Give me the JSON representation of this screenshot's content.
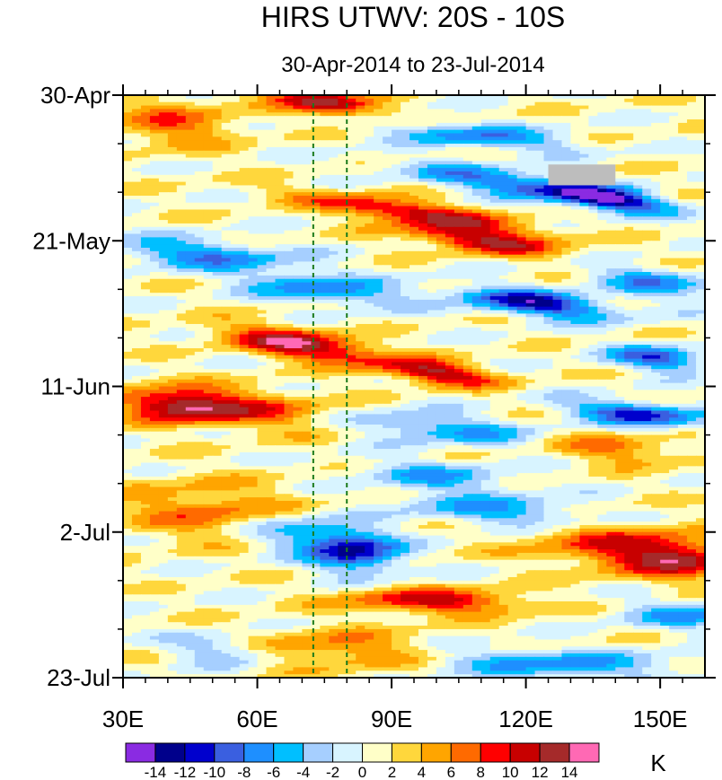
{
  "chart_data": {
    "type": "heatmap",
    "title": "HIRS UTWV: 20S - 10S",
    "subtitle": "30-Apr-2014 to 23-Jul-2014",
    "xlabel": "",
    "ylabel": "",
    "x_range_deg": [
      30,
      160
    ],
    "x_ticks": [
      {
        "value": 30,
        "label": "30E"
      },
      {
        "value": 60,
        "label": "60E"
      },
      {
        "value": 90,
        "label": "90E"
      },
      {
        "value": 120,
        "label": "120E"
      },
      {
        "value": 150,
        "label": "150E"
      }
    ],
    "y_range_days": [
      0,
      84
    ],
    "y_ticks": [
      {
        "value": 0,
        "label": "30-Apr"
      },
      {
        "value": 21,
        "label": "21-May"
      },
      {
        "value": 42,
        "label": "11-Jun"
      },
      {
        "value": 63,
        "label": "2-Jul"
      },
      {
        "value": 84,
        "label": "23-Jul"
      }
    ],
    "reference_lines_deg": [
      72.5,
      80
    ],
    "missing_data_region": {
      "lon": [
        125,
        140
      ],
      "days": [
        10,
        13
      ]
    },
    "colorbar": {
      "unit": "K",
      "levels": [
        -14,
        -12,
        -10,
        -8,
        -6,
        -4,
        -2,
        0,
        2,
        4,
        6,
        8,
        10,
        12,
        14
      ],
      "level_labels": [
        "-14",
        "-12",
        "-10",
        "-8",
        "-6",
        "-4",
        "-2",
        "0",
        "2",
        "4",
        "6",
        "8",
        "10",
        "12",
        "14"
      ],
      "colors": [
        "#8a2be2",
        "#00008b",
        "#0000cd",
        "#3a5fe0",
        "#1e8fff",
        "#00bfff",
        "#a6cfff",
        "#d8f4ff",
        "#ffffc8",
        "#ffd73c",
        "#ffa500",
        "#ff6a00",
        "#ff0000",
        "#c80000",
        "#a52a2a",
        "#ff69b4"
      ]
    },
    "anomaly_features": [
      {
        "lon": 75,
        "day": 1,
        "amp": 12,
        "slope": 0.9,
        "sx": 9,
        "sy": 1.3
      },
      {
        "lon": 70,
        "day": 36,
        "amp": 13,
        "slope": 0.9,
        "sx": 12,
        "sy": 1.5
      },
      {
        "lon": 100,
        "day": 40,
        "amp": 12,
        "slope": 0.7,
        "sx": 9,
        "sy": 1.2
      },
      {
        "lon": 95,
        "day": 17,
        "amp": 11,
        "slope": 0.9,
        "sx": 18,
        "sy": 1.2
      },
      {
        "lon": 110,
        "day": 21,
        "amp": 11,
        "slope": 0.8,
        "sx": 12,
        "sy": 1.2
      },
      {
        "lon": 55,
        "day": 45,
        "amp": 8,
        "slope": 0.6,
        "sx": 16,
        "sy": 2.0
      },
      {
        "lon": 42,
        "day": 45,
        "amp": 9,
        "slope": 0.2,
        "sx": 8,
        "sy": 1.5
      },
      {
        "lon": 42,
        "day": 4,
        "amp": 6,
        "slope": 0.3,
        "sx": 10,
        "sy": 2.5
      },
      {
        "lon": 100,
        "day": 73,
        "amp": 10,
        "slope": 0.1,
        "sx": 14,
        "sy": 1.3
      },
      {
        "lon": 155,
        "day": 67,
        "amp": 9,
        "slope": 0.4,
        "sx": 10,
        "sy": 2.0
      },
      {
        "lon": 140,
        "day": 65,
        "amp": 7,
        "slope": 0.3,
        "sx": 14,
        "sy": 2.5
      },
      {
        "lon": 50,
        "day": 60,
        "amp": 6,
        "slope": 0.3,
        "sx": 15,
        "sy": 3.0
      },
      {
        "lon": 80,
        "day": 80,
        "amp": 6,
        "slope": 0.2,
        "sx": 15,
        "sy": 2.0
      },
      {
        "lon": 140,
        "day": 51,
        "amp": 6,
        "slope": 0.5,
        "sx": 10,
        "sy": 1.5
      },
      {
        "lon": 120,
        "day": 13,
        "amp": -10,
        "slope": 0.9,
        "sx": 18,
        "sy": 1.3
      },
      {
        "lon": 138,
        "day": 15,
        "amp": -12,
        "slope": 0.9,
        "sx": 8,
        "sy": 1.1
      },
      {
        "lon": 122,
        "day": 30,
        "amp": -13,
        "slope": 0.7,
        "sx": 12,
        "sy": 1.3
      },
      {
        "lon": 145,
        "day": 46,
        "amp": -12,
        "slope": 0.6,
        "sx": 10,
        "sy": 1.2
      },
      {
        "lon": 150,
        "day": 38,
        "amp": -10,
        "slope": 0.6,
        "sx": 8,
        "sy": 1.2
      },
      {
        "lon": 82,
        "day": 66,
        "amp": -12,
        "slope": 0.3,
        "sx": 7,
        "sy": 2.0
      },
      {
        "lon": 70,
        "day": 63,
        "amp": -7,
        "slope": 0.3,
        "sx": 10,
        "sy": 2.0
      },
      {
        "lon": 48,
        "day": 23,
        "amp": -8,
        "slope": 0.5,
        "sx": 14,
        "sy": 1.5
      },
      {
        "lon": 75,
        "day": 28,
        "amp": -8,
        "slope": 0.6,
        "sx": 12,
        "sy": 1.5
      },
      {
        "lon": 100,
        "day": 48,
        "amp": -7,
        "slope": 0.5,
        "sx": 15,
        "sy": 1.5
      },
      {
        "lon": 110,
        "day": 6,
        "amp": -8,
        "slope": 0.5,
        "sx": 14,
        "sy": 1.2
      },
      {
        "lon": 115,
        "day": 60,
        "amp": -7,
        "slope": 0.4,
        "sx": 15,
        "sy": 1.5
      },
      {
        "lon": 125,
        "day": 82,
        "amp": -7,
        "slope": 0.2,
        "sx": 20,
        "sy": 1.5
      },
      {
        "lon": 155,
        "day": 75,
        "amp": -6,
        "slope": 0.3,
        "sx": 10,
        "sy": 1.5
      },
      {
        "lon": 52,
        "day": 80,
        "amp": -5,
        "slope": 0.2,
        "sx": 8,
        "sy": 1.5
      },
      {
        "lon": 148,
        "day": 27,
        "amp": -7,
        "slope": 0.7,
        "sx": 10,
        "sy": 1.5
      },
      {
        "lon": 100,
        "day": 55,
        "amp": -6,
        "slope": 0.5,
        "sx": 12,
        "sy": 1.5
      }
    ]
  }
}
